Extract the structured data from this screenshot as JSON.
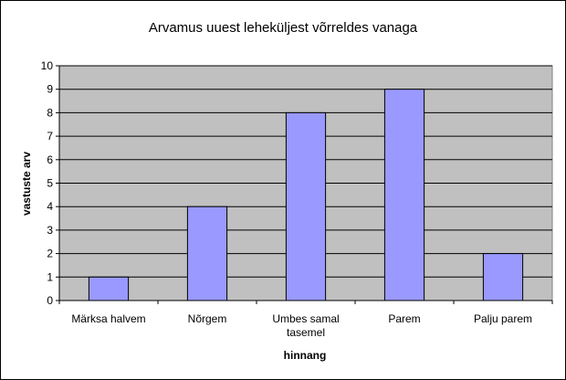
{
  "chart_data": {
    "type": "bar",
    "title": "Arvamus uuest leheküljest võrreldes vanaga",
    "xlabel": "hinnang",
    "ylabel": "vastuste arv",
    "categories": [
      [
        "Märksa halvem"
      ],
      [
        "Nõrgem"
      ],
      [
        "Umbes samal",
        "tasemel"
      ],
      [
        "Parem"
      ],
      [
        "Palju parem"
      ]
    ],
    "values": [
      1,
      4,
      8,
      9,
      2
    ],
    "ylim": [
      0,
      10
    ],
    "yticks": [
      "0",
      "1",
      "2",
      "3",
      "4",
      "5",
      "6",
      "7",
      "8",
      "9",
      "10"
    ],
    "grid": true,
    "legend": "none",
    "colors": {
      "bar": "#9999ff",
      "plot_background": "#c0c0c0",
      "gridline": "#000000"
    }
  }
}
